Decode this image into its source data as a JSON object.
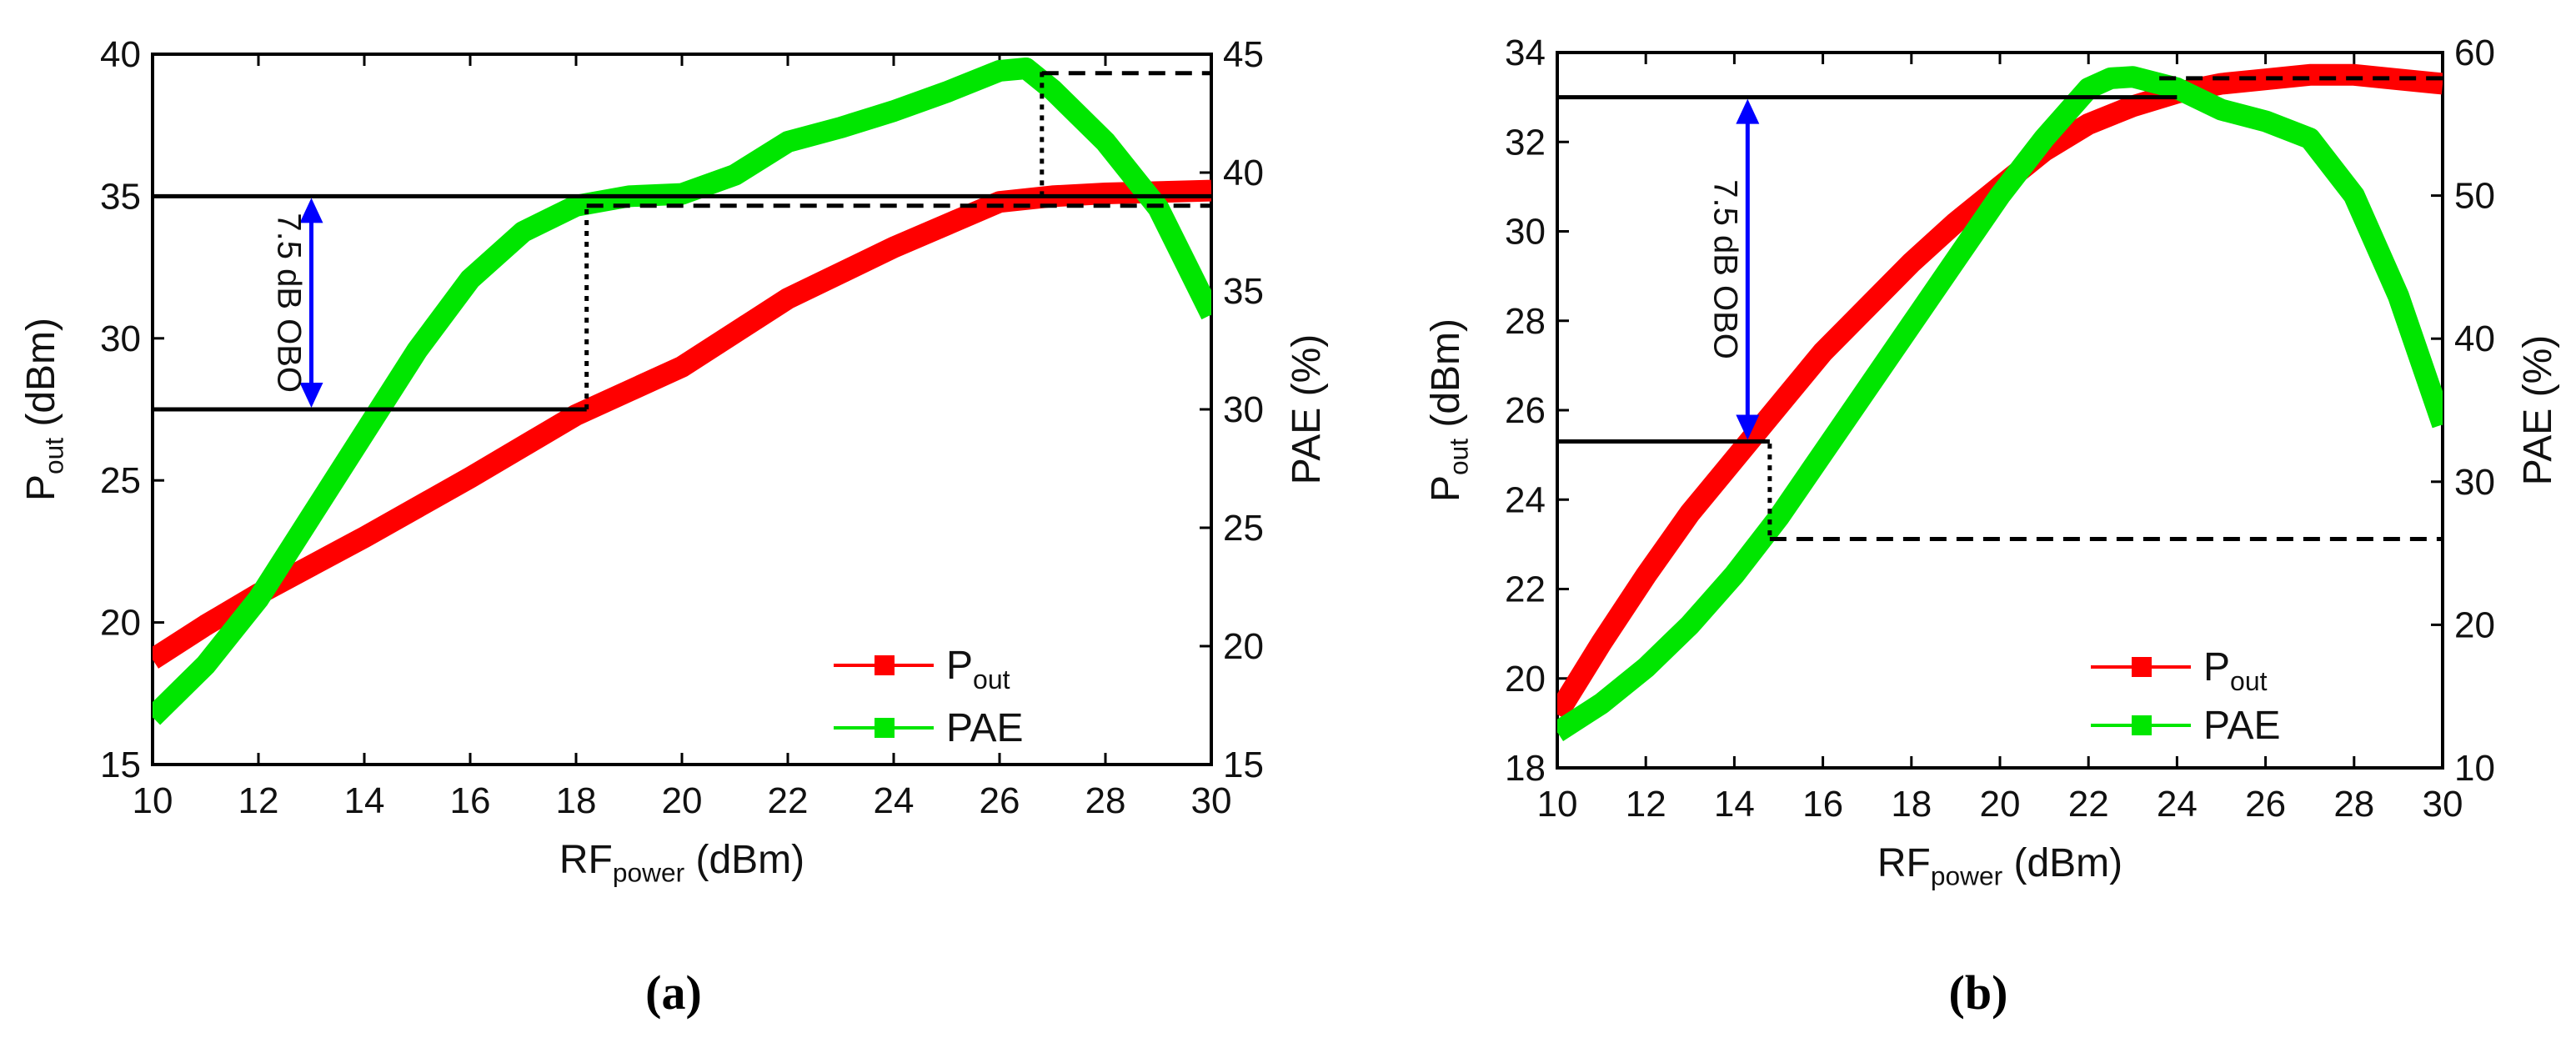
{
  "chart_data": [
    {
      "id": "a",
      "type": "line",
      "caption": "(a)",
      "x": [
        10,
        12,
        14,
        16,
        18,
        20,
        22,
        24,
        26,
        28,
        30
      ],
      "xlim": [
        10,
        30
      ],
      "xticks": [
        10,
        12,
        14,
        16,
        18,
        20,
        22,
        24,
        26,
        28,
        30
      ],
      "xlabel": {
        "main": "RF",
        "sub": "power",
        "unit": " (dBm)"
      },
      "ylabel_left": {
        "main": "P",
        "sub": "out",
        "unit": " (dBm)"
      },
      "ylabel_right": "PAE (%)",
      "ylim_left": [
        15,
        40
      ],
      "yticks_left": [
        15,
        20,
        25,
        30,
        35,
        40
      ],
      "ylim_right": [
        15,
        45
      ],
      "yticks_right": [
        15,
        20,
        25,
        30,
        35,
        40,
        45
      ],
      "series": [
        {
          "name": "P_out",
          "axis": "left",
          "color": "#ff0000",
          "points": [
            [
              10,
              18.7
            ],
            [
              11,
              19.9
            ],
            [
              12,
              21.0
            ],
            [
              14,
              23.0
            ],
            [
              16,
              25.1
            ],
            [
              18,
              27.3
            ],
            [
              20,
              29.0
            ],
            [
              22,
              31.4
            ],
            [
              24,
              33.2
            ],
            [
              26,
              34.8
            ],
            [
              27,
              35.0
            ],
            [
              28,
              35.1
            ],
            [
              30,
              35.2
            ]
          ]
        },
        {
          "name": "PAE",
          "axis": "right",
          "color": "#00e600",
          "points": [
            [
              10,
              17.0
            ],
            [
              11,
              19.2
            ],
            [
              12,
              22.0
            ],
            [
              13,
              25.5
            ],
            [
              14,
              29.0
            ],
            [
              15,
              32.5
            ],
            [
              16,
              35.5
            ],
            [
              17,
              37.5
            ],
            [
              18,
              38.6
            ],
            [
              19,
              39.0
            ],
            [
              20,
              39.1
            ],
            [
              21,
              39.9
            ],
            [
              22,
              41.3
            ],
            [
              23,
              41.9
            ],
            [
              24,
              42.6
            ],
            [
              25,
              43.4
            ],
            [
              26,
              44.3
            ],
            [
              26.5,
              44.4
            ],
            [
              27,
              43.5
            ],
            [
              28,
              41.3
            ],
            [
              29,
              38.5
            ],
            [
              30,
              34.0
            ]
          ]
        }
      ],
      "legend": [
        {
          "label_main": "P",
          "label_sub": "out",
          "color": "#ff0000"
        },
        {
          "label_main": "PAE",
          "label_sub": "",
          "color": "#00e600"
        }
      ],
      "annotation": {
        "text": "7.5 dB OBO",
        "from_y": 27.5,
        "to_y": 35.0,
        "at_x": 13
      },
      "ref_lines": [
        {
          "style": "solid",
          "x1": 10,
          "x2": 30,
          "y": 35.0,
          "axis": "left"
        },
        {
          "style": "solid",
          "x1": 10,
          "x2": 18.2,
          "y": 27.5,
          "axis": "left"
        },
        {
          "style": "dashed",
          "x1": 18.2,
          "x2": 30,
          "y": 38.6,
          "axis": "right"
        },
        {
          "style": "dashed",
          "x1": 26.8,
          "x2": 30,
          "y": 44.2,
          "axis": "right"
        },
        {
          "style": "dotted-v",
          "x": 18.2,
          "y1": 27.5,
          "y2": 34.6,
          "axis": "left"
        },
        {
          "style": "dotted-v",
          "x": 26.8,
          "y1": 35.0,
          "y2": 39.5,
          "axis": "left"
        }
      ]
    },
    {
      "id": "b",
      "type": "line",
      "caption": "(b)",
      "x": [
        10,
        12,
        14,
        16,
        18,
        20,
        22,
        24,
        26,
        28,
        30
      ],
      "xlim": [
        10,
        30
      ],
      "xticks": [
        10,
        12,
        14,
        16,
        18,
        20,
        22,
        24,
        26,
        28,
        30
      ],
      "xlabel": {
        "main": "RF",
        "sub": "power",
        "unit": " (dBm)"
      },
      "ylabel_left": {
        "main": "P",
        "sub": "out",
        "unit": " (dBm)"
      },
      "ylabel_right": "PAE (%)",
      "ylim_left": [
        18,
        34
      ],
      "yticks_left": [
        18,
        20,
        22,
        24,
        26,
        28,
        30,
        32,
        34
      ],
      "ylim_right": [
        10,
        60
      ],
      "yticks_right": [
        10,
        20,
        30,
        40,
        50,
        60
      ],
      "series": [
        {
          "name": "P_out",
          "axis": "left",
          "color": "#ff0000",
          "points": [
            [
              10,
              19.2
            ],
            [
              11,
              20.8
            ],
            [
              12,
              22.3
            ],
            [
              13,
              23.7
            ],
            [
              14,
              24.9
            ],
            [
              15,
              26.1
            ],
            [
              16,
              27.3
            ],
            [
              17,
              28.3
            ],
            [
              18,
              29.3
            ],
            [
              19,
              30.2
            ],
            [
              20,
              31.0
            ],
            [
              21,
              31.8
            ],
            [
              22,
              32.4
            ],
            [
              23,
              32.8
            ],
            [
              24,
              33.1
            ],
            [
              25,
              33.3
            ],
            [
              26,
              33.4
            ],
            [
              27,
              33.5
            ],
            [
              28,
              33.5
            ],
            [
              29,
              33.4
            ],
            [
              30,
              33.3
            ]
          ]
        },
        {
          "name": "PAE",
          "axis": "right",
          "color": "#00e600",
          "points": [
            [
              10,
              12.5
            ],
            [
              11,
              14.5
            ],
            [
              12,
              17.0
            ],
            [
              13,
              20.0
            ],
            [
              14,
              23.5
            ],
            [
              15,
              27.5
            ],
            [
              16,
              32.0
            ],
            [
              17,
              36.5
            ],
            [
              18,
              41.0
            ],
            [
              19,
              45.5
            ],
            [
              20,
              50.0
            ],
            [
              21,
              54.0
            ],
            [
              22,
              57.5
            ],
            [
              22.5,
              58.2
            ],
            [
              23,
              58.3
            ],
            [
              24,
              57.5
            ],
            [
              25,
              56.0
            ],
            [
              26,
              55.2
            ],
            [
              27,
              54.0
            ],
            [
              28,
              50.0
            ],
            [
              29,
              43.0
            ],
            [
              30,
              34.0
            ]
          ]
        }
      ],
      "legend": [
        {
          "label_main": "P",
          "label_sub": "out",
          "color": "#ff0000"
        },
        {
          "label_main": "PAE",
          "label_sub": "",
          "color": "#00e600"
        }
      ],
      "annotation": {
        "text": "7.5 dB OBO",
        "from_y": 25.3,
        "to_y": 33.0,
        "at_x": 14.3
      },
      "ref_lines": [
        {
          "style": "solid",
          "x1": 10,
          "x2": 24,
          "y": 33.0,
          "axis": "left"
        },
        {
          "style": "solid",
          "x1": 10,
          "x2": 14.8,
          "y": 25.3,
          "axis": "left"
        },
        {
          "style": "dashed",
          "x1": 14.8,
          "x2": 30,
          "y": 26.0,
          "axis": "right"
        },
        {
          "style": "dashed",
          "x1": 23.6,
          "x2": 30,
          "y": 58.2,
          "axis": "right"
        },
        {
          "style": "dotted-v",
          "x": 14.8,
          "y1": 23.2,
          "y2": 25.3,
          "axis": "left"
        }
      ]
    }
  ]
}
